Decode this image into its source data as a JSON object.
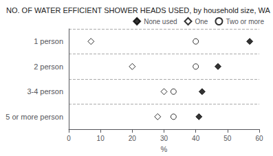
{
  "chart_data": {
    "type": "scatter",
    "orientation": "horizontal",
    "title": "NO. OF WATER EFFICIENT SHOWER HEADS USED, by household size, WA",
    "xlabel": "%",
    "categories": [
      "1 person",
      "2 person",
      "3-4 person",
      "5 or more person"
    ],
    "series": [
      {
        "name": "None used",
        "color": "#000000",
        "marker": "diamond",
        "values": [
          57,
          47,
          42,
          41
        ]
      },
      {
        "name": "One",
        "color": "#000000",
        "marker": "open_diamond",
        "values": [
          7,
          20,
          30,
          28
        ]
      },
      {
        "name": "Two or more",
        "color": "#000000",
        "marker": "open_circle",
        "values": [
          40,
          40,
          33,
          33
        ]
      }
    ],
    "xlim": [
      0,
      60
    ],
    "xticks": [
      0,
      10,
      20,
      30,
      40,
      50,
      60
    ],
    "grid": true,
    "legend": "upper right"
  }
}
